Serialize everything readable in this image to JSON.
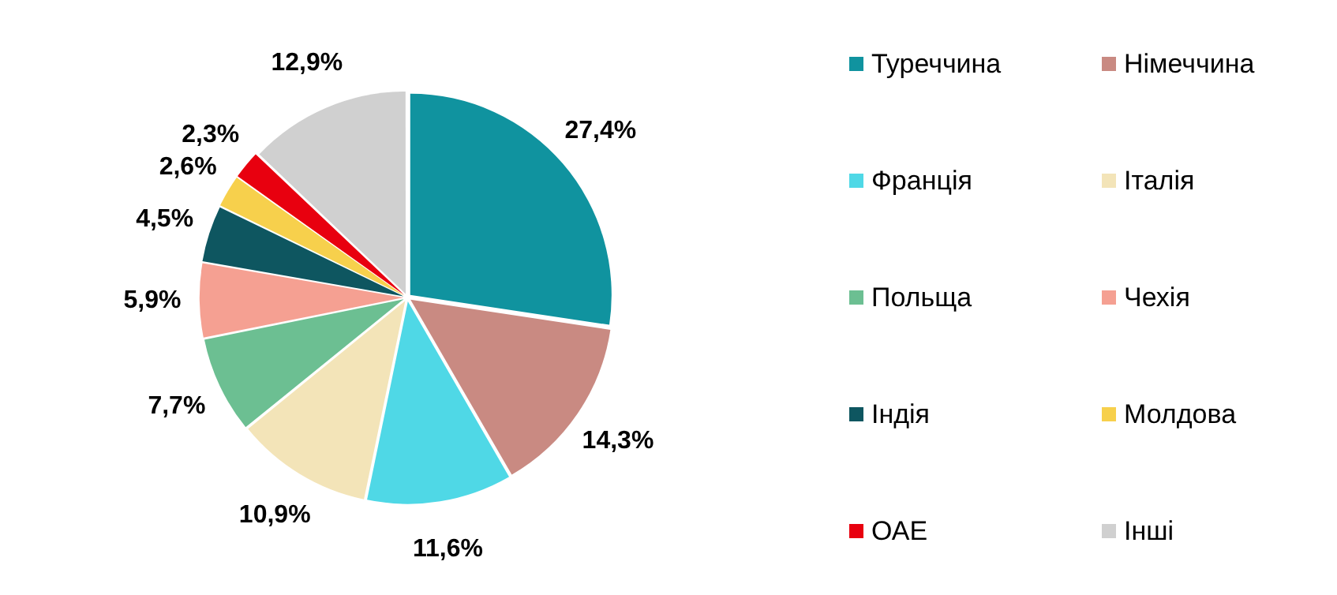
{
  "chart_data": {
    "type": "pie",
    "categories": [
      "Туреччина",
      "Німеччина",
      "Франція",
      "Італія",
      "Польща",
      "Чехія",
      "Індія",
      "Молдова",
      "ОАЕ",
      "Інші"
    ],
    "values": [
      27.4,
      14.3,
      11.6,
      10.9,
      7.7,
      5.9,
      4.5,
      2.6,
      2.3,
      12.9
    ],
    "colors": [
      "#10939f",
      "#c98a82",
      "#4fd8e6",
      "#f3e4b8",
      "#6cbf92",
      "#f5a092",
      "#0e5660",
      "#f7d04c",
      "#e8000f",
      "#d0d0d0"
    ],
    "value_labels": [
      "27,4%",
      "14,3%",
      "11,6%",
      "10,9%",
      "7,7%",
      "5,9%",
      "4,5%",
      "2,6%",
      "2,3%",
      "12,9%"
    ],
    "legend": "right"
  }
}
